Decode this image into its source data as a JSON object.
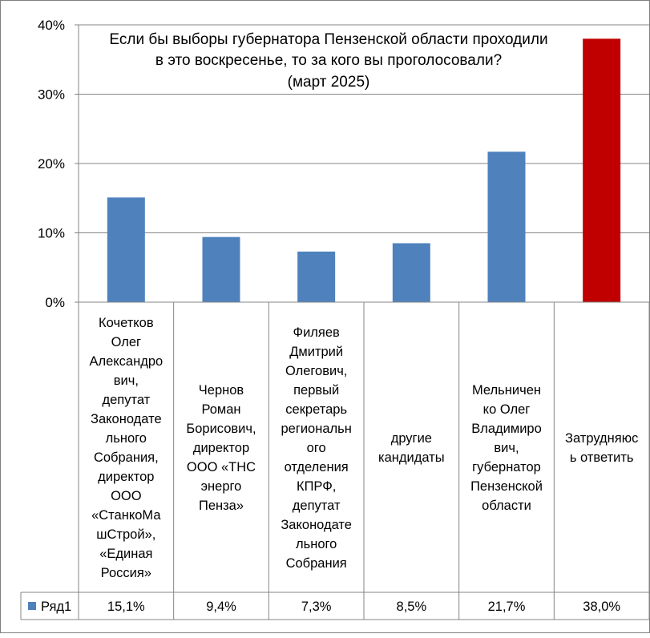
{
  "chart_data": {
    "type": "bar",
    "title_lines": [
      "Если бы выборы губернатора Пензенской области проходили",
      "в это воскресенье, то за кого вы проголосовали?",
      "(март  2025)"
    ],
    "categories": [
      "Кочетков Олег Александрович, депутат Законодательного Собрания, директор ООО «СтанкоМашСтрой», «Единая Россия»",
      "Чернов Роман Борисович, директор ООО «ТНС энерго Пенза»",
      "Филяев Дмитрий Олегович, первый секретарь регионального отделения КПРФ, депутат Законодательного Собрания",
      "другие кандидаты",
      "Мельниченко Олег Владимирович, губернатор Пензенской области",
      "Затрудняюсь ответить"
    ],
    "category_label_lines": [
      [
        "Кочетков",
        "Олег",
        "Александро",
        "вич,",
        "депутат",
        "Законодате",
        "льного",
        "Собрания,",
        "директор",
        "ООО",
        "«СтанкоМа",
        "шСтрой»,",
        "«Единая",
        "Россия»"
      ],
      [
        "Чернов",
        "Роман",
        "Борисович,",
        "директор",
        "ООО «ТНС",
        "энерго",
        "Пенза»"
      ],
      [
        "Филяев",
        "Дмитрий",
        "Олегович,",
        "первый",
        "секретарь",
        "региональн",
        "ого",
        "отделения",
        "КПРФ,",
        "депутат",
        "Законодате",
        "льного",
        "Собрания"
      ],
      [
        "другие",
        "кандидаты"
      ],
      [
        "Мельничен",
        "ко Олег",
        "Владимиро",
        "вич,",
        "губернатор",
        "Пензенской",
        "области"
      ],
      [
        "Затрудняюс",
        "ь ответить"
      ]
    ],
    "series": [
      {
        "name": "Ряд1",
        "values": [
          15.1,
          9.4,
          7.3,
          8.5,
          21.7,
          38.0
        ],
        "labels": [
          "15,1%",
          "9,4%",
          "7,3%",
          "8,5%",
          "21,7%",
          "38,0%"
        ]
      }
    ],
    "point_colors": [
      "#4f81bd",
      "#4f81bd",
      "#4f81bd",
      "#4f81bd",
      "#4f81bd",
      "#c00000"
    ],
    "series_color": "#4f81bd",
    "ylim": [
      0,
      40
    ],
    "yticks": [
      0,
      10,
      20,
      30,
      40
    ],
    "ytick_labels": [
      "0%",
      "10%",
      "20%",
      "30%",
      "40%"
    ],
    "grid": true,
    "data_table": true
  }
}
